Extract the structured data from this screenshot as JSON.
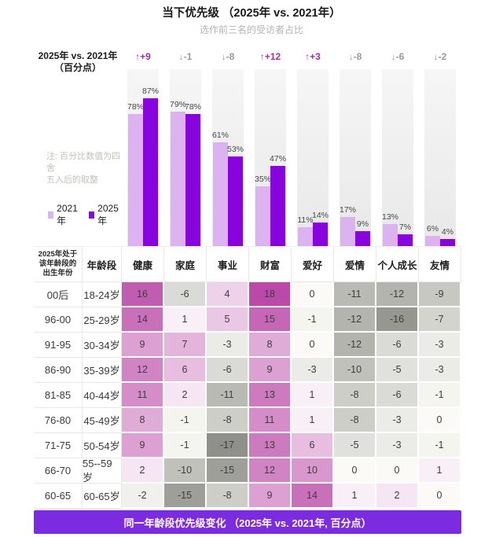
{
  "header": {
    "title": "当下优先级 （2025年 vs. 2021年）",
    "subtitle": "选作前三名的受访者占比"
  },
  "chart": {
    "axis_label_line1": "2025年 vs. 2021年",
    "axis_label_line2": "（百分点）",
    "note_line1": "注: 百分比数值为四舍",
    "note_line2": "五入后的取整"
  },
  "chart_data": {
    "type": "bar",
    "categories": [
      "健康",
      "家庭",
      "事业",
      "财富",
      "爱好",
      "爱情",
      "个人成长",
      "友情"
    ],
    "series": [
      {
        "name": "2021年",
        "color": "#dcb2f0",
        "values": [
          78,
          79,
          61,
          35,
          11,
          17,
          13,
          6
        ]
      },
      {
        "name": "2025年",
        "color": "#8704dd",
        "values": [
          87,
          78,
          53,
          47,
          14,
          9,
          7,
          4
        ]
      }
    ],
    "unit": "%",
    "ylim": [
      0,
      100
    ],
    "grid": false,
    "legend_position": "left",
    "deltas": [
      {
        "text": "↑+9",
        "dir": "up"
      },
      {
        "text": "↓-1",
        "dir": "down"
      },
      {
        "text": "↓-8",
        "dir": "down"
      },
      {
        "text": "↑+12",
        "dir": "up"
      },
      {
        "text": "↑+3",
        "dir": "up"
      },
      {
        "text": "↓-8",
        "dir": "down"
      },
      {
        "text": "↓-6",
        "dir": "down"
      },
      {
        "text": "↓-2",
        "dir": "down"
      }
    ]
  },
  "table": {
    "header_col1_lines": [
      "2025年处于",
      "该年龄段的",
      "出生年份"
    ],
    "header_col2": "年龄段",
    "rows": [
      {
        "cohort": "00后",
        "age": "18-24岁",
        "values": [
          16,
          -6,
          4,
          18,
          0,
          -11,
          -12,
          -9
        ]
      },
      {
        "cohort": "96-00",
        "age": "25-29岁",
        "values": [
          14,
          1,
          5,
          15,
          -1,
          -12,
          -16,
          -7
        ]
      },
      {
        "cohort": "91-95",
        "age": "30-34岁",
        "values": [
          9,
          7,
          -3,
          8,
          0,
          -12,
          -6,
          -3
        ]
      },
      {
        "cohort": "86-90",
        "age": "35-39岁",
        "values": [
          12,
          6,
          -6,
          9,
          -3,
          -10,
          -5,
          -3
        ]
      },
      {
        "cohort": "81-85",
        "age": "40-44岁",
        "values": [
          11,
          2,
          -11,
          13,
          1,
          -8,
          -6,
          -1
        ]
      },
      {
        "cohort": "76-80",
        "age": "45-49岁",
        "values": [
          8,
          -1,
          -8,
          11,
          1,
          -8,
          -3,
          0
        ]
      },
      {
        "cohort": "71-75",
        "age": "50-54岁",
        "values": [
          9,
          -1,
          -17,
          13,
          6,
          -5,
          -3,
          -1
        ]
      },
      {
        "cohort": "66-70",
        "age": "55--59岁",
        "values": [
          2,
          -10,
          -15,
          12,
          10,
          0,
          0,
          1
        ]
      },
      {
        "cohort": "60-65",
        "age": "60-65岁",
        "values": [
          -2,
          -15,
          -8,
          9,
          14,
          1,
          2,
          0
        ]
      }
    ]
  },
  "footer": {
    "banner": "同一年龄段优先级变化 （2025年 vs. 2021年, 百分点）"
  },
  "colors": {
    "delta_positive": "#a0309e",
    "delta_negative": "#999999",
    "banner_bg": "#7b2ce0",
    "banner_text": "#ffffff",
    "cell_positive_max": "#ba49a8",
    "cell_positive_min": "#fdf9fc",
    "cell_negative_max": "#90908a",
    "cell_negative_min": "#f8f8f4",
    "cell_zero": "#fbfaf6"
  }
}
